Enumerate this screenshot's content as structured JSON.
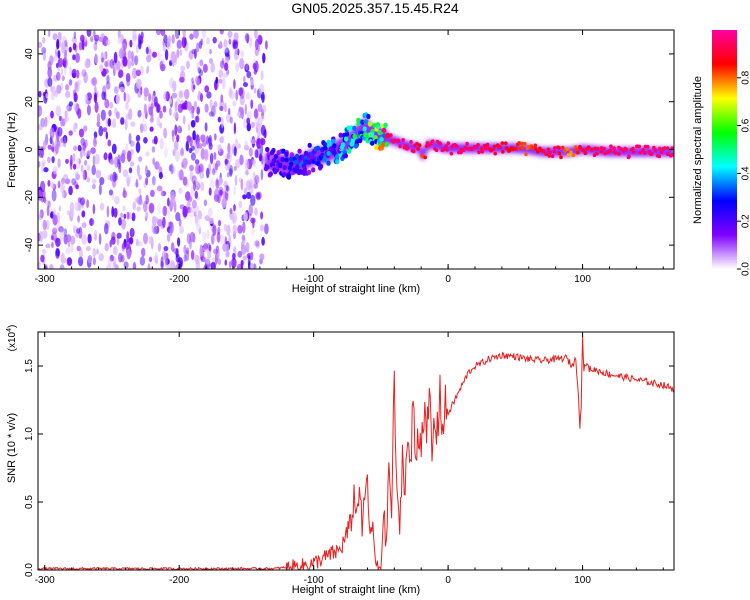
{
  "title": "GN05.2025.357.15.45.R24",
  "colors": {
    "snr_line": "#e82020",
    "axis": "#000000"
  },
  "chart_data": [
    {
      "type": "heatmap",
      "xlabel": "Height of straight line (km)",
      "ylabel": "Frequency (Hz)",
      "xlim": [
        -305,
        168
      ],
      "ylim": [
        -50,
        50
      ],
      "x_ticks": [
        "-300",
        "-200",
        "-100",
        "0",
        "100"
      ],
      "x_tick_values": [
        -300,
        -200,
        -100,
        0,
        100
      ],
      "y_ticks": [
        "40",
        "20",
        "0",
        "-20",
        "-40"
      ],
      "y_tick_values": [
        40,
        20,
        0,
        -20,
        -40
      ],
      "colorbar": {
        "label": "Normalized spectral amplitude",
        "range": [
          0,
          1
        ],
        "ticks": [
          "0.0",
          "0.2",
          "0.4",
          "0.6",
          "0.8"
        ],
        "tick_values": [
          0.0,
          0.2,
          0.4,
          0.6,
          0.8
        ],
        "colormap": [
          "#ffffff",
          "#8000ff",
          "#0000ff",
          "#00ffff",
          "#00ff00",
          "#ffff00",
          "#ff0000",
          "#ff00a0"
        ]
      },
      "noise_region_x": [
        -305,
        -135
      ],
      "ridge": {
        "x": [
          -135,
          -120,
          -110,
          -100,
          -90,
          -80,
          -70,
          -62,
          -57,
          -52,
          -47,
          -42,
          -37,
          -32,
          -27,
          -22,
          -19,
          -15,
          -10,
          -5,
          0,
          20,
          50,
          60,
          70,
          80,
          90,
          100,
          120,
          168
        ],
        "freq": [
          -5,
          -6,
          -6,
          -3,
          -2,
          1,
          5,
          10,
          7,
          6,
          5,
          4,
          3,
          2,
          1,
          1,
          -3,
          2,
          2,
          1,
          0.5,
          0.5,
          0.5,
          0,
          -1,
          -1,
          -1,
          0,
          -1,
          -1
        ],
        "amplitude": [
          0.2,
          0.25,
          0.3,
          0.3,
          0.35,
          0.4,
          0.45,
          0.5,
          0.6,
          0.7,
          0.85,
          0.95,
          0.95,
          0.95,
          0.95,
          0.9,
          0.8,
          0.95,
          0.95,
          0.95,
          0.95,
          0.95,
          0.85,
          0.8,
          0.9,
          0.95,
          0.75,
          0.9,
          0.95,
          0.95
        ]
      }
    },
    {
      "type": "line",
      "xlabel": "Height of straight line (km)",
      "ylabel": "SNR (10 * v/v)",
      "y_multiplier": "(x10",
      "y_multiplier_exp": "4",
      "y_multiplier_close": ")",
      "xlim": [
        -305,
        168
      ],
      "ylim": [
        0,
        1.75
      ],
      "x_ticks": [
        "-300",
        "-200",
        "-100",
        "0",
        "100"
      ],
      "x_tick_values": [
        -300,
        -200,
        -100,
        0,
        100
      ],
      "y_ticks": [
        "0.0",
        "0.5",
        "1.0",
        "1.5"
      ],
      "y_tick_values": [
        0.0,
        0.5,
        1.0,
        1.5
      ],
      "series": [
        {
          "x": [
            -305,
            -200,
            -150,
            -130,
            -120,
            -110,
            -100,
            -90,
            -80,
            -72,
            -70,
            -68,
            -66,
            -64,
            -62,
            -60,
            -58,
            -56,
            -54,
            -52,
            -50,
            -48,
            -46,
            -44,
            -42,
            -40,
            -38,
            -36,
            -34,
            -32,
            -30,
            -28,
            -26,
            -24,
            -22,
            -20,
            -18,
            -16,
            -14,
            -12,
            -10,
            -8,
            -6,
            -4,
            -2,
            0,
            5,
            10,
            15,
            20,
            25,
            30,
            40,
            50,
            60,
            70,
            80,
            88,
            92,
            95,
            97,
            98,
            99,
            100,
            101,
            102,
            105,
            110,
            120,
            130,
            140,
            150,
            160,
            168
          ],
          "y": [
            0.01,
            0.01,
            0.01,
            0.01,
            0.02,
            0.03,
            0.05,
            0.1,
            0.15,
            0.35,
            0.55,
            0.4,
            0.65,
            0.3,
            0.5,
            0.7,
            0.2,
            0.35,
            0.03,
            0.02,
            0.02,
            0.45,
            0.15,
            0.8,
            0.4,
            1.4,
            0.5,
            0.3,
            0.85,
            0.6,
            1.0,
            0.7,
            1.25,
            0.8,
            1.05,
            0.95,
            1.2,
            0.9,
            1.3,
            0.85,
            1.1,
            1.0,
            1.35,
            1.0,
            1.2,
            1.15,
            1.25,
            1.35,
            1.45,
            1.5,
            1.52,
            1.55,
            1.58,
            1.57,
            1.55,
            1.54,
            1.55,
            1.56,
            1.5,
            1.55,
            1.3,
            1.05,
            1.2,
            1.75,
            1.45,
            1.52,
            1.48,
            1.47,
            1.44,
            1.42,
            1.4,
            1.38,
            1.36,
            1.33
          ]
        }
      ]
    }
  ]
}
